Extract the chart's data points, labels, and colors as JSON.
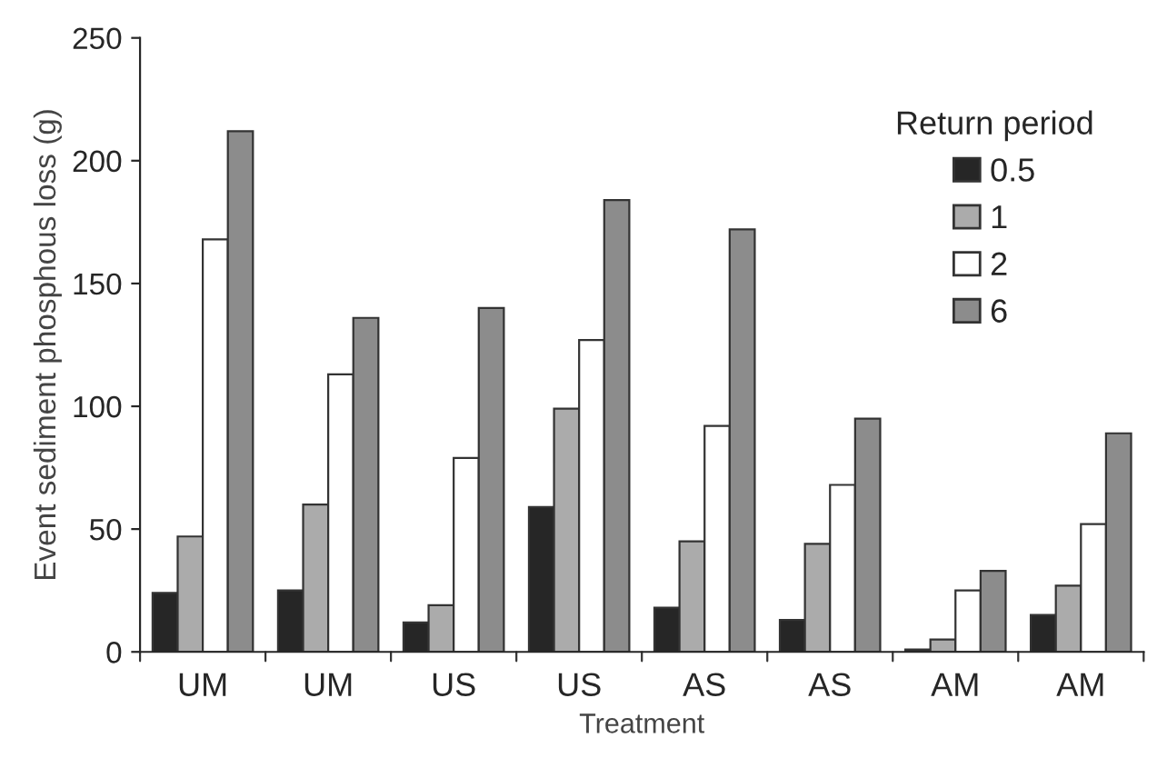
{
  "chart_data": {
    "type": "bar",
    "xlabel": "Treatment",
    "ylabel": "Event sediment phosphous loss (g)",
    "legend_title": "Return period",
    "categories": [
      "UM",
      "UM",
      "US",
      "US",
      "AS",
      "AS",
      "AM",
      "AM"
    ],
    "series": [
      {
        "name": "0.5",
        "color": "#262626",
        "values": [
          24,
          25,
          12,
          59,
          18,
          13,
          1,
          15
        ]
      },
      {
        "name": "1",
        "color": "#ababab",
        "values": [
          47,
          60,
          19,
          99,
          45,
          44,
          5,
          27
        ]
      },
      {
        "name": "2",
        "color": "#ffffff",
        "values": [
          168,
          113,
          79,
          127,
          92,
          68,
          25,
          52
        ]
      },
      {
        "name": "6",
        "color": "#8c8c8c",
        "values": [
          212,
          136,
          140,
          184,
          172,
          95,
          33,
          89
        ]
      }
    ],
    "ylim": [
      0,
      250
    ],
    "yticks": [
      0,
      50,
      100,
      150,
      200,
      250
    ],
    "grid": false,
    "legend": "top right"
  }
}
